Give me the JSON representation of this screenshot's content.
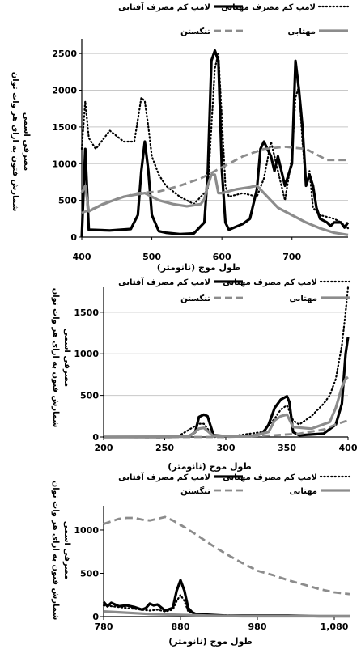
{
  "chart_data": [
    {
      "type": "line",
      "xlabel": "طول موج (نانومتر)",
      "ylabel": [
        "شمارش فتون به ازای هر وات توان",
        "مصرفی اسمی"
      ],
      "xlim": [
        400,
        780
      ],
      "ylim": [
        0,
        2700
      ],
      "xticks": [
        400,
        500,
        600,
        700
      ],
      "xtick_labels": [
        "400",
        "500",
        "600",
        "700"
      ],
      "yticks": [
        0,
        500,
        1000,
        1500,
        2000,
        2500
      ],
      "ytick_labels": [
        "0",
        "500",
        "1000",
        "1500",
        "2000",
        "2500"
      ],
      "grid": "horizontal",
      "legend_position": "top",
      "series": [
        {
          "name": "لامپ کم مصرف آفتابی",
          "style": "solid-black",
          "x": [
            400,
            405,
            410,
            440,
            470,
            480,
            485,
            490,
            495,
            500,
            510,
            520,
            540,
            560,
            575,
            580,
            585,
            590,
            595,
            600,
            605,
            610,
            630,
            640,
            650,
            655,
            660,
            665,
            670,
            675,
            680,
            690,
            700,
            705,
            710,
            715,
            720,
            725,
            730,
            735,
            740,
            750,
            755,
            760,
            770,
            775,
            780
          ],
          "y": [
            0,
            1200,
            100,
            90,
            110,
            300,
            900,
            1300,
            900,
            300,
            80,
            60,
            40,
            50,
            200,
            900,
            2400,
            2540,
            2400,
            900,
            200,
            100,
            180,
            250,
            650,
            1200,
            1300,
            1200,
            1100,
            900,
            1100,
            700,
            1000,
            2400,
            2000,
            1500,
            700,
            850,
            700,
            400,
            250,
            200,
            150,
            200,
            200,
            130,
            200
          ]
        },
        {
          "name": "لامپ کم مصرف مهتابی",
          "style": "dotted-black",
          "x": [
            400,
            405,
            410,
            420,
            440,
            460,
            475,
            480,
            485,
            490,
            495,
            500,
            510,
            520,
            540,
            560,
            580,
            585,
            590,
            595,
            600,
            605,
            610,
            630,
            650,
            660,
            670,
            680,
            690,
            700,
            705,
            710,
            715,
            720,
            725,
            730,
            740,
            760,
            770,
            780
          ],
          "y": [
            1200,
            1850,
            1350,
            1200,
            1450,
            1300,
            1300,
            1600,
            1900,
            1850,
            1500,
            1100,
            850,
            700,
            550,
            450,
            650,
            1500,
            2300,
            2500,
            1600,
            700,
            550,
            600,
            550,
            800,
            1300,
            900,
            500,
            1100,
            1900,
            2050,
            1300,
            700,
            900,
            400,
            300,
            250,
            200,
            120
          ]
        },
        {
          "name": "تنگستن",
          "style": "dashed-gray",
          "x": [
            400,
            420,
            450,
            480,
            510,
            540,
            570,
            600,
            630,
            660,
            690,
            720,
            750,
            780
          ],
          "y": [
            330,
            400,
            520,
            600,
            620,
            700,
            800,
            950,
            1100,
            1200,
            1230,
            1200,
            1050,
            1050
          ]
        },
        {
          "name": "مهتابی",
          "style": "solid-gray",
          "x": [
            400,
            405,
            410,
            430,
            460,
            490,
            510,
            530,
            550,
            570,
            575,
            580,
            585,
            590,
            595,
            600,
            620,
            640,
            650,
            660,
            680,
            700,
            720,
            740,
            760,
            780
          ],
          "y": [
            600,
            700,
            350,
            450,
            550,
            600,
            500,
            450,
            420,
            450,
            520,
            700,
            850,
            850,
            600,
            600,
            650,
            680,
            700,
            600,
            400,
            300,
            200,
            120,
            60,
            30
          ]
        }
      ]
    },
    {
      "type": "line",
      "xlabel": "طول موج (نانومتر)",
      "ylabel": [
        "شمارش فتون به ازای هر وات توان",
        "مصرفی اسمی"
      ],
      "xlim": [
        200,
        400
      ],
      "ylim": [
        0,
        1800
      ],
      "xticks": [
        200,
        250,
        300,
        350,
        400
      ],
      "xtick_labels": [
        "200",
        "250",
        "300",
        "350",
        "400"
      ],
      "yticks": [
        0,
        500,
        1000,
        1500
      ],
      "ytick_labels": [
        "0",
        "500",
        "1000",
        "1500"
      ],
      "grid": "horizontal",
      "legend_position": "top",
      "series": [
        {
          "name": "لامپ کم مصرف آفتابی",
          "style": "solid-black",
          "x": [
            200,
            250,
            270,
            275,
            278,
            282,
            285,
            290,
            300,
            320,
            330,
            335,
            340,
            345,
            350,
            352,
            355,
            360,
            380,
            390,
            395,
            398,
            400
          ],
          "y": [
            0,
            0,
            10,
            60,
            240,
            270,
            250,
            20,
            10,
            10,
            40,
            150,
            350,
            450,
            490,
            420,
            60,
            20,
            40,
            150,
            400,
            1000,
            1200
          ]
        },
        {
          "name": "لامپ کم مصرف مهتابی",
          "style": "dotted-black",
          "x": [
            200,
            260,
            278,
            282,
            290,
            300,
            330,
            340,
            345,
            350,
            355,
            360,
            370,
            380,
            385,
            390,
            395,
            398,
            400
          ],
          "y": [
            0,
            0,
            160,
            160,
            0,
            0,
            60,
            220,
            330,
            380,
            200,
            150,
            250,
            400,
            500,
            700,
            1100,
            1500,
            1800
          ]
        },
        {
          "name": "تنگستن",
          "style": "dashed-gray",
          "x": [
            200,
            300,
            340,
            360,
            380,
            390,
            400
          ],
          "y": [
            0,
            0,
            20,
            40,
            90,
            150,
            200
          ]
        },
        {
          "name": "مهتابی",
          "style": "solid-gray",
          "x": [
            200,
            270,
            278,
            282,
            290,
            320,
            335,
            340,
            345,
            350,
            355,
            370,
            385,
            390,
            395,
            398,
            400
          ],
          "y": [
            0,
            5,
            100,
            110,
            10,
            10,
            60,
            200,
            250,
            270,
            120,
            100,
            180,
            350,
            600,
            700,
            720
          ]
        }
      ]
    },
    {
      "type": "line",
      "xlabel": "طول موج (نانومتر)",
      "ylabel": [
        "شمارش فتون به ازای هر وات توان",
        "مصرفی اسمی"
      ],
      "xlim": [
        780,
        1100
      ],
      "ylim": [
        0,
        1280
      ],
      "xticks": [
        780,
        880,
        980,
        1080
      ],
      "xtick_labels": [
        "780",
        "880",
        "980",
        "1,080"
      ],
      "yticks": [
        0,
        500,
        1000
      ],
      "ytick_labels": [
        "0",
        "500",
        "1000"
      ],
      "grid": "none",
      "legend_position": "top",
      "series": [
        {
          "name": "لامپ کم مصرف آفتابی",
          "style": "solid-black",
          "x": [
            780,
            785,
            790,
            800,
            810,
            820,
            830,
            835,
            840,
            845,
            850,
            860,
            870,
            875,
            880,
            885,
            890,
            895,
            900,
            920,
            940,
            980,
            1020,
            1060,
            1100
          ],
          "y": [
            170,
            120,
            160,
            120,
            130,
            110,
            80,
            100,
            150,
            130,
            140,
            70,
            100,
            300,
            420,
            300,
            100,
            50,
            30,
            20,
            10,
            10,
            10,
            5,
            5
          ]
        },
        {
          "name": "لامپ کم مصرف مهتابی",
          "style": "dotted-black",
          "x": [
            780,
            800,
            820,
            840,
            850,
            860,
            870,
            875,
            880,
            885,
            890,
            900,
            920,
            960,
            1000,
            1060,
            1100
          ],
          "y": [
            130,
            110,
            90,
            70,
            80,
            60,
            80,
            180,
            250,
            180,
            60,
            30,
            20,
            10,
            5,
            5,
            5
          ]
        },
        {
          "name": "تنگستن",
          "style": "dashed-gray",
          "x": [
            780,
            790,
            800,
            810,
            820,
            830,
            840,
            850,
            860,
            870,
            880,
            900,
            920,
            940,
            960,
            980,
            1000,
            1020,
            1040,
            1060,
            1080,
            1100
          ],
          "y": [
            1070,
            1100,
            1130,
            1140,
            1140,
            1120,
            1110,
            1130,
            1150,
            1110,
            1060,
            950,
            830,
            720,
            620,
            530,
            480,
            420,
            370,
            320,
            280,
            260
          ]
        },
        {
          "name": "مهتابی",
          "style": "solid-gray",
          "x": [
            780,
            800,
            820,
            840,
            860,
            880,
            900,
            920,
            960,
            1000,
            1100
          ],
          "y": [
            60,
            50,
            40,
            30,
            25,
            20,
            15,
            10,
            5,
            5,
            5
          ]
        }
      ]
    }
  ]
}
